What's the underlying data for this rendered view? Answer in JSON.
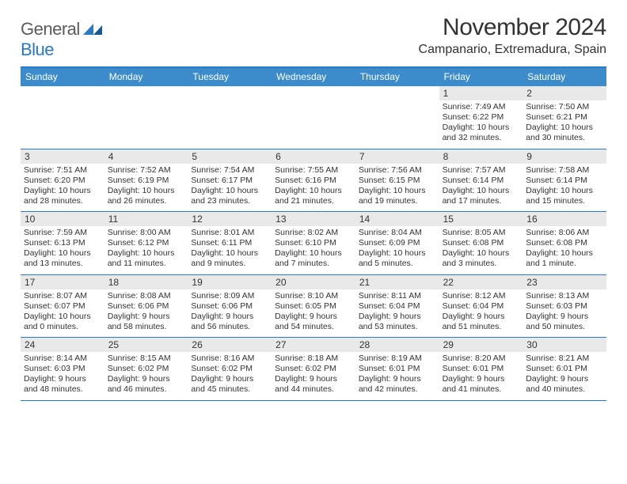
{
  "logo": {
    "text_a": "General",
    "text_b": "Blue"
  },
  "title": "November 2024",
  "location": "Campanario, Extremadura, Spain",
  "colors": {
    "header_bar": "#3c8ccc",
    "border": "#2b79c2",
    "daynum_bg": "#e9e9e9",
    "text": "#333333",
    "logo_gray": "#5b5b5b",
    "logo_blue": "#2b79c2"
  },
  "days_of_week": [
    "Sunday",
    "Monday",
    "Tuesday",
    "Wednesday",
    "Thursday",
    "Friday",
    "Saturday"
  ],
  "weeks": [
    [
      {
        "n": "",
        "sr": "",
        "ss": "",
        "dl": ""
      },
      {
        "n": "",
        "sr": "",
        "ss": "",
        "dl": ""
      },
      {
        "n": "",
        "sr": "",
        "ss": "",
        "dl": ""
      },
      {
        "n": "",
        "sr": "",
        "ss": "",
        "dl": ""
      },
      {
        "n": "",
        "sr": "",
        "ss": "",
        "dl": ""
      },
      {
        "n": "1",
        "sr": "Sunrise: 7:49 AM",
        "ss": "Sunset: 6:22 PM",
        "dl": "Daylight: 10 hours and 32 minutes."
      },
      {
        "n": "2",
        "sr": "Sunrise: 7:50 AM",
        "ss": "Sunset: 6:21 PM",
        "dl": "Daylight: 10 hours and 30 minutes."
      }
    ],
    [
      {
        "n": "3",
        "sr": "Sunrise: 7:51 AM",
        "ss": "Sunset: 6:20 PM",
        "dl": "Daylight: 10 hours and 28 minutes."
      },
      {
        "n": "4",
        "sr": "Sunrise: 7:52 AM",
        "ss": "Sunset: 6:19 PM",
        "dl": "Daylight: 10 hours and 26 minutes."
      },
      {
        "n": "5",
        "sr": "Sunrise: 7:54 AM",
        "ss": "Sunset: 6:17 PM",
        "dl": "Daylight: 10 hours and 23 minutes."
      },
      {
        "n": "6",
        "sr": "Sunrise: 7:55 AM",
        "ss": "Sunset: 6:16 PM",
        "dl": "Daylight: 10 hours and 21 minutes."
      },
      {
        "n": "7",
        "sr": "Sunrise: 7:56 AM",
        "ss": "Sunset: 6:15 PM",
        "dl": "Daylight: 10 hours and 19 minutes."
      },
      {
        "n": "8",
        "sr": "Sunrise: 7:57 AM",
        "ss": "Sunset: 6:14 PM",
        "dl": "Daylight: 10 hours and 17 minutes."
      },
      {
        "n": "9",
        "sr": "Sunrise: 7:58 AM",
        "ss": "Sunset: 6:14 PM",
        "dl": "Daylight: 10 hours and 15 minutes."
      }
    ],
    [
      {
        "n": "10",
        "sr": "Sunrise: 7:59 AM",
        "ss": "Sunset: 6:13 PM",
        "dl": "Daylight: 10 hours and 13 minutes."
      },
      {
        "n": "11",
        "sr": "Sunrise: 8:00 AM",
        "ss": "Sunset: 6:12 PM",
        "dl": "Daylight: 10 hours and 11 minutes."
      },
      {
        "n": "12",
        "sr": "Sunrise: 8:01 AM",
        "ss": "Sunset: 6:11 PM",
        "dl": "Daylight: 10 hours and 9 minutes."
      },
      {
        "n": "13",
        "sr": "Sunrise: 8:02 AM",
        "ss": "Sunset: 6:10 PM",
        "dl": "Daylight: 10 hours and 7 minutes."
      },
      {
        "n": "14",
        "sr": "Sunrise: 8:04 AM",
        "ss": "Sunset: 6:09 PM",
        "dl": "Daylight: 10 hours and 5 minutes."
      },
      {
        "n": "15",
        "sr": "Sunrise: 8:05 AM",
        "ss": "Sunset: 6:08 PM",
        "dl": "Daylight: 10 hours and 3 minutes."
      },
      {
        "n": "16",
        "sr": "Sunrise: 8:06 AM",
        "ss": "Sunset: 6:08 PM",
        "dl": "Daylight: 10 hours and 1 minute."
      }
    ],
    [
      {
        "n": "17",
        "sr": "Sunrise: 8:07 AM",
        "ss": "Sunset: 6:07 PM",
        "dl": "Daylight: 10 hours and 0 minutes."
      },
      {
        "n": "18",
        "sr": "Sunrise: 8:08 AM",
        "ss": "Sunset: 6:06 PM",
        "dl": "Daylight: 9 hours and 58 minutes."
      },
      {
        "n": "19",
        "sr": "Sunrise: 8:09 AM",
        "ss": "Sunset: 6:06 PM",
        "dl": "Daylight: 9 hours and 56 minutes."
      },
      {
        "n": "20",
        "sr": "Sunrise: 8:10 AM",
        "ss": "Sunset: 6:05 PM",
        "dl": "Daylight: 9 hours and 54 minutes."
      },
      {
        "n": "21",
        "sr": "Sunrise: 8:11 AM",
        "ss": "Sunset: 6:04 PM",
        "dl": "Daylight: 9 hours and 53 minutes."
      },
      {
        "n": "22",
        "sr": "Sunrise: 8:12 AM",
        "ss": "Sunset: 6:04 PM",
        "dl": "Daylight: 9 hours and 51 minutes."
      },
      {
        "n": "23",
        "sr": "Sunrise: 8:13 AM",
        "ss": "Sunset: 6:03 PM",
        "dl": "Daylight: 9 hours and 50 minutes."
      }
    ],
    [
      {
        "n": "24",
        "sr": "Sunrise: 8:14 AM",
        "ss": "Sunset: 6:03 PM",
        "dl": "Daylight: 9 hours and 48 minutes."
      },
      {
        "n": "25",
        "sr": "Sunrise: 8:15 AM",
        "ss": "Sunset: 6:02 PM",
        "dl": "Daylight: 9 hours and 46 minutes."
      },
      {
        "n": "26",
        "sr": "Sunrise: 8:16 AM",
        "ss": "Sunset: 6:02 PM",
        "dl": "Daylight: 9 hours and 45 minutes."
      },
      {
        "n": "27",
        "sr": "Sunrise: 8:18 AM",
        "ss": "Sunset: 6:02 PM",
        "dl": "Daylight: 9 hours and 44 minutes."
      },
      {
        "n": "28",
        "sr": "Sunrise: 8:19 AM",
        "ss": "Sunset: 6:01 PM",
        "dl": "Daylight: 9 hours and 42 minutes."
      },
      {
        "n": "29",
        "sr": "Sunrise: 8:20 AM",
        "ss": "Sunset: 6:01 PM",
        "dl": "Daylight: 9 hours and 41 minutes."
      },
      {
        "n": "30",
        "sr": "Sunrise: 8:21 AM",
        "ss": "Sunset: 6:01 PM",
        "dl": "Daylight: 9 hours and 40 minutes."
      }
    ]
  ]
}
